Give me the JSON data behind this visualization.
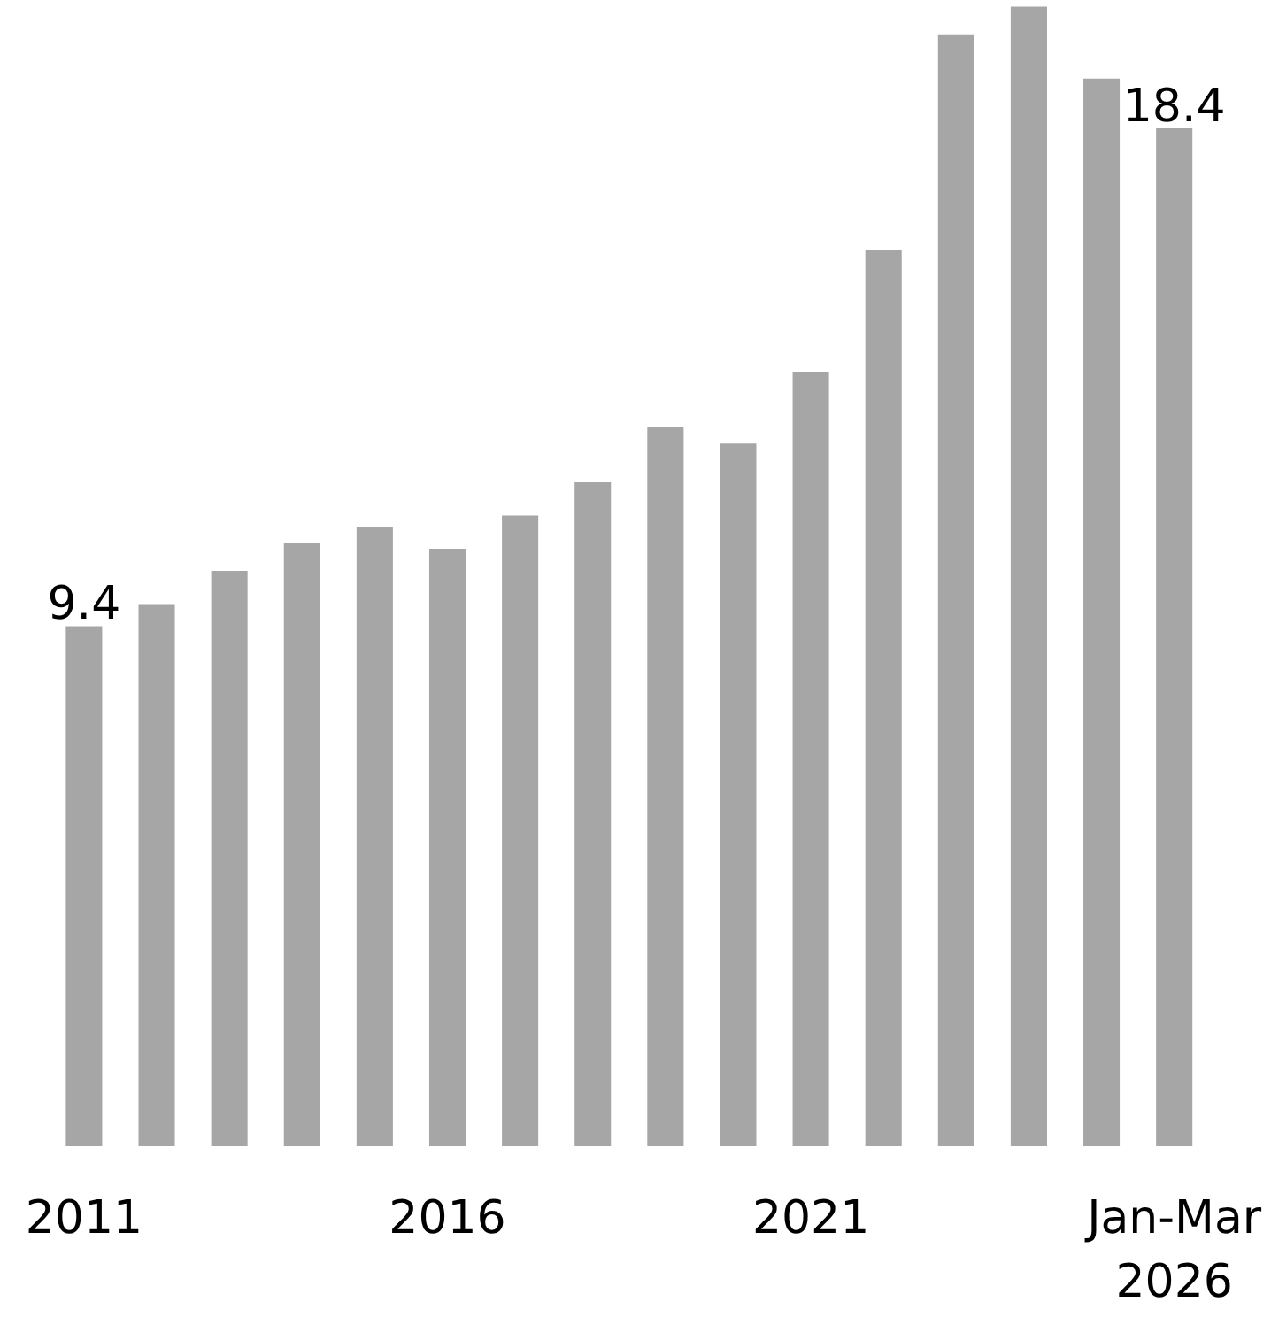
{
  "chart_data": {
    "type": "bar",
    "categories": [
      "2011",
      null,
      null,
      null,
      null,
      "2016",
      null,
      null,
      null,
      null,
      "2021",
      null,
      null,
      null,
      null,
      "Jan-Mar\n2026"
    ],
    "values": [
      9.4,
      9.8,
      10.4,
      10.9,
      11.2,
      10.8,
      11.4,
      12.0,
      13.0,
      12.7,
      14.0,
      16.2,
      20.1,
      20.6,
      19.3,
      18.4
    ],
    "value_labels": [
      "9.4",
      null,
      null,
      null,
      null,
      null,
      null,
      null,
      null,
      null,
      null,
      null,
      null,
      null,
      null,
      "18.4"
    ],
    "color": "#a6a6a6",
    "grid": false
  }
}
